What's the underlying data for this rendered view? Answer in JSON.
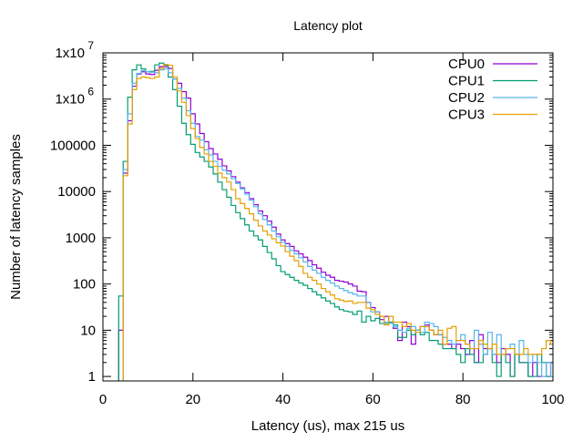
{
  "chart_data": {
    "type": "line",
    "style": "histogram-steps",
    "title": "Latency plot",
    "xlabel": "Latency (us), max 215 us",
    "ylabel": "Number of latency samples",
    "xlim": [
      0,
      100
    ],
    "ylim": [
      0.8,
      10000000
    ],
    "yscale": "log",
    "grid": false,
    "legend_position": "top-right",
    "xticks": [
      0,
      20,
      40,
      60,
      80,
      100
    ],
    "xtick_labels": [
      "0",
      "20",
      "40",
      "60",
      "80",
      "100"
    ],
    "yticks": [
      1,
      10,
      100,
      1000,
      10000,
      100000,
      1000000,
      10000000
    ],
    "ytick_labels": [
      {
        "text": "1",
        "sup": ""
      },
      {
        "text": "10",
        "sup": ""
      },
      {
        "text": "100",
        "sup": ""
      },
      {
        "text": "1000",
        "sup": ""
      },
      {
        "text": "10000",
        "sup": ""
      },
      {
        "text": "100000",
        "sup": ""
      },
      {
        "text": "1x10",
        "sup": "6"
      },
      {
        "text": "1x10",
        "sup": "7"
      }
    ],
    "x_first_bin": 0,
    "series": [
      {
        "name": "CPU0",
        "color": "#9400d3",
        "values": [
          0,
          0,
          0,
          0,
          10,
          25000,
          340000,
          1900000,
          3500000,
          3900000,
          3500000,
          3400000,
          4200000,
          5000000,
          5000000,
          4600000,
          2700000,
          2200000,
          1450000,
          1050000,
          480000,
          290000,
          180000,
          120000,
          85000,
          65000,
          50000,
          36000,
          28000,
          21000,
          16000,
          12000,
          9500,
          7000,
          5200,
          3800,
          3000,
          2300,
          1700,
          1200,
          900,
          750,
          650,
          520,
          450,
          380,
          320,
          260,
          220,
          180,
          155,
          140,
          120,
          115,
          110,
          100,
          90,
          70,
          68,
          40,
          31,
          25,
          17,
          20,
          14,
          11,
          6,
          15,
          12,
          5,
          10,
          12,
          13,
          10,
          8,
          8,
          5,
          5,
          4,
          5,
          4,
          3,
          6,
          2,
          8,
          4,
          4,
          3,
          2,
          4,
          3,
          1,
          3,
          2,
          2,
          1,
          2,
          1,
          1,
          2,
          1
        ]
      },
      {
        "name": "CPU1",
        "color": "#009e73",
        "values": [
          0,
          0,
          0,
          0,
          55,
          45000,
          1100000,
          4300000,
          5500000,
          4500000,
          3900000,
          4000000,
          5500000,
          6000000,
          5400000,
          3000000,
          1600000,
          700000,
          300000,
          170000,
          105000,
          70000,
          56000,
          45000,
          34000,
          24000,
          16000,
          11000,
          7500,
          5000,
          3500,
          2600,
          1900,
          1400,
          1100,
          900,
          650,
          480,
          350,
          250,
          185,
          160,
          140,
          120,
          105,
          94,
          80,
          68,
          58,
          50,
          43,
          38,
          32,
          28,
          26,
          25,
          22,
          26,
          15,
          20,
          16,
          18,
          14,
          14,
          15,
          13,
          7,
          7,
          10,
          8,
          10,
          8,
          9,
          6,
          6,
          5,
          4,
          4,
          4,
          3,
          2,
          4,
          3,
          2,
          2,
          3,
          4,
          2,
          1,
          3,
          2,
          1,
          3,
          2,
          2,
          1,
          1,
          3,
          2,
          1,
          1
        ]
      },
      {
        "name": "CPU2",
        "color": "#56b4e9",
        "values": [
          0,
          0,
          0,
          0,
          0,
          30000,
          480000,
          2200000,
          3600000,
          4100000,
          3900000,
          3800000,
          3700000,
          4300000,
          4500000,
          3700000,
          2700000,
          1700000,
          1050000,
          560000,
          300000,
          155000,
          130000,
          80000,
          62000,
          45000,
          35000,
          29000,
          24000,
          19000,
          15000,
          11500,
          8800,
          6500,
          4700,
          3300,
          2500,
          1900,
          1400,
          1050,
          800,
          650,
          530,
          450,
          370,
          300,
          240,
          200,
          170,
          140,
          120,
          105,
          90,
          80,
          72,
          65,
          60,
          55,
          55,
          40,
          25,
          25,
          20,
          15,
          14,
          12,
          10,
          9,
          11,
          12,
          10,
          9,
          15,
          14,
          12,
          8,
          7,
          6,
          5,
          6,
          8,
          5,
          4,
          10,
          5,
          3,
          9,
          3,
          8,
          3,
          4,
          5,
          3,
          6,
          3,
          2,
          3,
          2,
          1,
          2,
          1
        ]
      },
      {
        "name": "CPU3",
        "color": "#e69f00",
        "values": [
          0,
          0,
          0,
          0,
          0,
          22000,
          290000,
          1600000,
          2800000,
          3000000,
          2900000,
          2800000,
          3000000,
          4600000,
          5600000,
          5400000,
          3000000,
          1500000,
          850000,
          440000,
          230000,
          140000,
          90000,
          65000,
          45000,
          35000,
          25000,
          20000,
          16000,
          11000,
          7000,
          5500,
          4300,
          3300,
          2400,
          1800,
          1400,
          1150,
          950,
          780,
          660,
          500,
          400,
          320,
          240,
          170,
          140,
          120,
          100,
          80,
          68,
          58,
          48,
          45,
          42,
          43,
          38,
          40,
          40,
          30,
          28,
          22,
          20,
          13,
          20,
          15,
          15,
          12,
          14,
          10,
          9,
          12,
          12,
          10,
          8,
          10,
          5,
          11,
          12,
          6,
          6,
          5,
          4,
          4,
          6,
          5,
          4,
          5,
          3,
          3,
          4,
          4,
          3,
          3,
          4,
          3,
          3,
          3,
          4,
          6,
          5
        ]
      }
    ]
  }
}
